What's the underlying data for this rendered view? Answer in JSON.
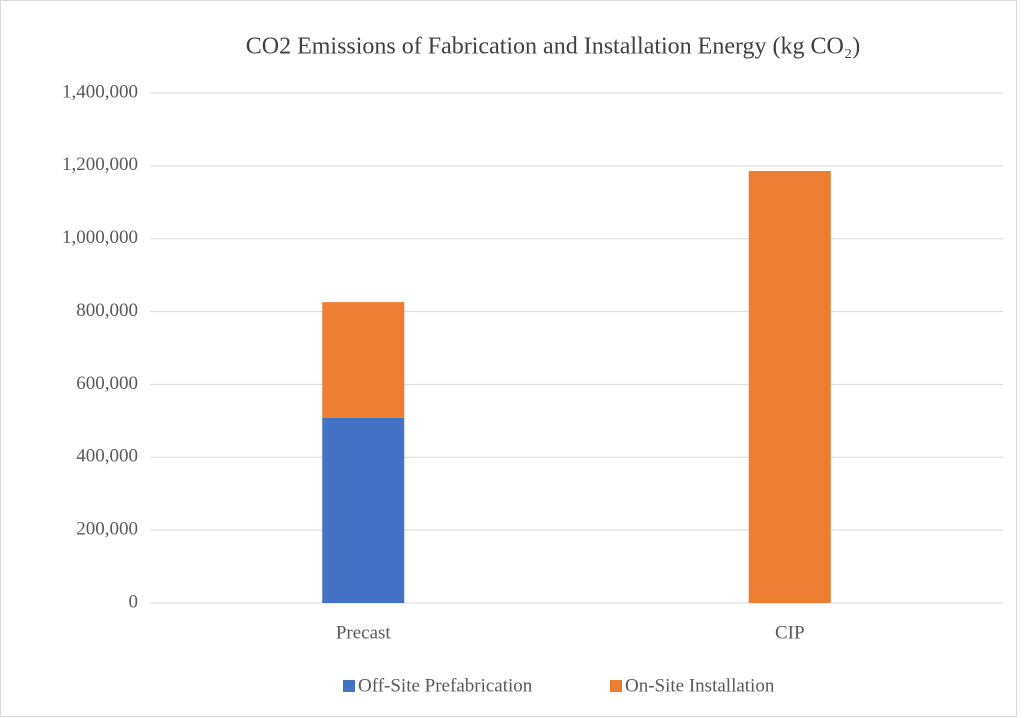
{
  "chart_data": {
    "type": "stacked_bar",
    "title": "CO2 Emissions of Fabrication and Installation Energy (kg CO₂)",
    "categories": [
      "Precast",
      "CIP"
    ],
    "series": [
      {
        "name": "Off-Site Prefabrication",
        "color": "#4472c4",
        "values": [
          508000,
          0
        ]
      },
      {
        "name": "On-Site Installation",
        "color": "#ed7d31",
        "values": [
          318000,
          1186000
        ]
      }
    ],
    "ylim": [
      0,
      1400000
    ],
    "yticks": [
      0,
      {
        "value": 200000,
        "label": "200,000"
      },
      {
        "value": 400000,
        "label": "400,000"
      },
      {
        "value": 600000,
        "label": "600,000"
      },
      {
        "value": 800000,
        "label": "800,000"
      },
      {
        "value": 1000000,
        "label": "1,000,000"
      },
      {
        "value": 1200000,
        "label": "1,200,000"
      },
      {
        "value": 1400000,
        "label": "1,400,000"
      }
    ],
    "grid": true,
    "legend": "bottom"
  }
}
